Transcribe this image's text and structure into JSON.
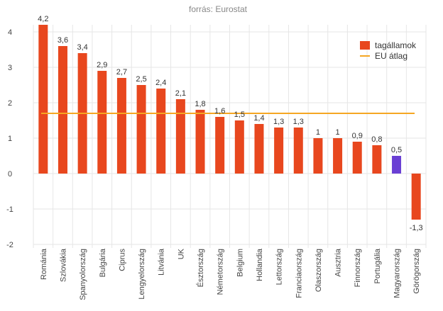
{
  "chart_data": {
    "type": "bar",
    "title": "forrás: Eurostat",
    "categories": [
      "Románia",
      "Szlovákia",
      "Spanyolország",
      "Bulgária",
      "Ciprus",
      "Lengyelország",
      "Litvánia",
      "UK",
      "Észtország",
      "Németország",
      "Belgium",
      "Hollandia",
      "Lettország",
      "Franciaország",
      "Olaszország",
      "Ausztria",
      "Finnország",
      "Portugália",
      "Magyarország",
      "Görögország"
    ],
    "series": [
      {
        "name": "tagállamok",
        "values": [
          4.2,
          3.6,
          3.4,
          2.9,
          2.7,
          2.5,
          2.4,
          2.1,
          1.8,
          1.6,
          1.5,
          1.4,
          1.3,
          1.3,
          1,
          1,
          0.9,
          0.8,
          0.5,
          -1.3
        ]
      }
    ],
    "data_labels": [
      "4,2",
      "3,6",
      "3,4",
      "2,9",
      "2,7",
      "2,5",
      "2,4",
      "2,1",
      "1,8",
      "1,6",
      "1,5",
      "1,4",
      "1,3",
      "1,3",
      "1",
      "1",
      "0,9",
      "0,8",
      "0,5",
      "-1,3"
    ],
    "reference_line": {
      "name": "EU átlag",
      "value": 1.7,
      "color": "#f5a623"
    },
    "highlight": {
      "category": "Magyarország",
      "color": "#6a3fd4"
    },
    "bar_color": "#e8471e",
    "ylim": [
      -2,
      4.2
    ],
    "yticks": [
      "-2",
      "-1",
      "0",
      "1",
      "2",
      "3",
      "4"
    ],
    "ytick_values": [
      -2,
      -1,
      0,
      1,
      2,
      3,
      4
    ],
    "xlabel": "",
    "ylabel": "",
    "grid": true,
    "legend": {
      "placement": "top-right"
    }
  }
}
